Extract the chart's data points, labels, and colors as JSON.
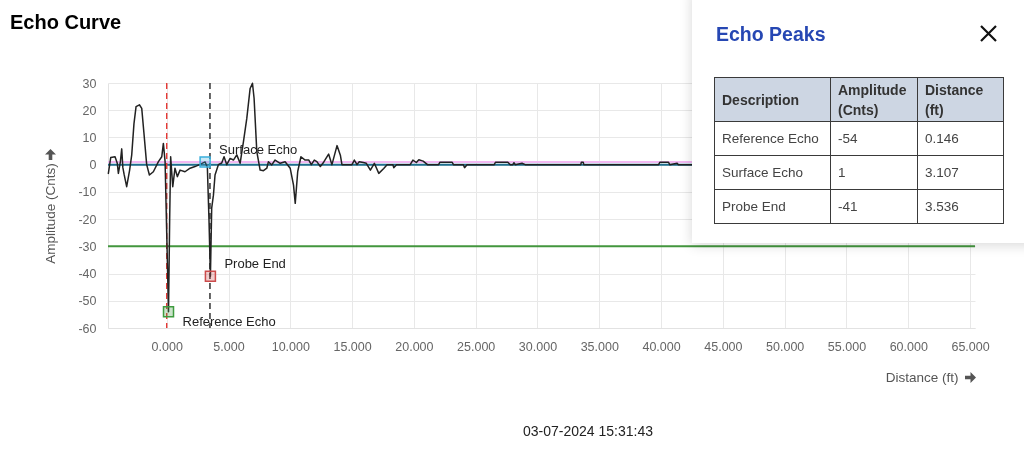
{
  "chart_data": [
    {
      "type": "line",
      "title": "Echo Curve",
      "xlabel": "Distance (ft)",
      "ylabel": "Amplitude (Cnts)",
      "x": [
        -4.72,
        -4.53,
        -4.18,
        -4.0,
        -3.91,
        -3.75,
        -3.64,
        -3.55,
        -3.45,
        -3.24,
        -3.0,
        -2.83,
        -2.65,
        -2.48,
        -2.21,
        -2.02,
        -1.85,
        -1.62,
        -1.4,
        -1.08,
        -0.67,
        -0.4,
        -0.27,
        -0.13,
        0.0,
        0.146,
        0.24,
        0.32,
        0.49,
        0.67,
        0.86,
        1.08,
        1.48,
        1.89,
        2.29,
        2.7,
        3.107,
        3.29,
        3.42,
        3.536,
        3.64,
        3.78,
        3.91,
        4.18,
        4.45,
        4.64,
        4.86,
        5.13,
        5.4,
        5.67,
        5.94,
        6.21,
        6.48,
        6.75,
        6.94,
        7.07,
        7.29,
        7.56,
        7.83,
        8.1,
        8.23,
        8.5,
        8.77,
        9.18,
        9.58,
        9.99,
        10.26,
        10.4,
        10.6,
        10.86,
        11.2,
        11.5,
        11.7,
        11.94,
        12.15,
        12.43,
        12.7,
        13.1,
        13.37,
        13.78,
        14.05,
        14.18,
        14.99,
        15.18,
        15.4,
        15.58,
        15.9,
        16.15,
        16.48,
        16.8,
        17.16,
        17.56,
        17.83,
        18.3,
        18.37,
        18.6,
        19.7,
        19.92,
        20.2,
        20.4,
        20.75,
        21.1,
        22.0,
        22.1,
        23.1,
        23.2,
        24.0,
        24.1,
        24.3,
        26.5,
        26.6,
        27.6,
        27.8,
        28.0,
        28.1,
        28.2,
        28.75,
        29.0,
        33.5,
        33.55,
        33.7,
        33.75,
        39.8,
        39.9,
        40.6,
        40.7,
        41.3,
        41.4,
        42.5
      ],
      "series": [
        {
          "color": "#222222",
          "values": [
            -3.2,
            2.6,
            2.9,
            0.5,
            -3.2,
            1,
            5.8,
            -1,
            -3.5,
            -8.1,
            -2,
            3.6,
            15,
            21.3,
            22,
            20.7,
            12,
            0,
            -3.8,
            -2.6,
            1.1,
            2.9,
            7.8,
            1.1,
            -25,
            -54,
            -20,
            2.9,
            -8.1,
            -1.3,
            -4.4,
            -2,
            -2.6,
            -1.3,
            -0.7,
            0.1,
            1,
            -1,
            -20,
            -41,
            -16,
            -11.2,
            -3.8,
            0,
            0.6,
            2.9,
            0,
            2.3,
            1.7,
            3.6,
            0.5,
            8.5,
            17,
            28,
            29.9,
            24.4,
            4.8,
            -2,
            -2.2,
            -1.3,
            1.1,
            -0.1,
            1.7,
            0.5,
            1.1,
            -1.3,
            -7.5,
            -14.2,
            -2.5,
            2.9,
            1.7,
            1.7,
            0,
            1.7,
            1.1,
            -0.7,
            0.9,
            3.9,
            0,
            7,
            3.5,
            0,
            0,
            1.7,
            0,
            1.1,
            0.8,
            0.5,
            -2,
            0.5,
            -3.2,
            -1.4,
            0,
            0,
            -1.1,
            0,
            0,
            1.7,
            0.8,
            1.8,
            1.3,
            0,
            0,
            0.9,
            0.9,
            0,
            0,
            -1.1,
            0,
            0,
            0.9,
            0.9,
            0,
            0,
            0.7,
            0,
            0.5,
            0,
            0,
            0.9,
            0.9,
            0,
            0,
            0.9,
            0.9,
            0,
            0.5,
            0,
            0
          ]
        },
        {
          "type": "scatter",
          "marker": "square",
          "x": [
            0.146,
            3.107,
            3.536
          ],
          "values": [
            -54,
            1,
            -41
          ],
          "colors": [
            "#3f9b3f",
            "#3aaedc",
            "#cc4b4b"
          ]
        }
      ],
      "xlim": [
        -4.75,
        65.4
      ],
      "ylim": [
        -60,
        30
      ],
      "xticks": [
        {
          "value": 0,
          "label": "0.000"
        },
        {
          "value": 5,
          "label": "5.000"
        },
        {
          "value": 10,
          "label": "10.000"
        },
        {
          "value": 15,
          "label": "15.000"
        },
        {
          "value": 20,
          "label": "20.000"
        },
        {
          "value": 25,
          "label": "25.000"
        },
        {
          "value": 30,
          "label": "30.000"
        },
        {
          "value": 35,
          "label": "35.000"
        },
        {
          "value": 40,
          "label": "40.000"
        },
        {
          "value": 45,
          "label": "45.000"
        },
        {
          "value": 50,
          "label": "50.000"
        },
        {
          "value": 55,
          "label": "55.000"
        },
        {
          "value": 60,
          "label": "60.000"
        },
        {
          "value": 65,
          "label": "65.000"
        }
      ],
      "yticks": [
        -60,
        -50,
        -40,
        -30,
        -20,
        -10,
        0,
        10,
        20,
        30
      ],
      "grid": true,
      "ref_lines": [
        {
          "axis": "y",
          "value": -30,
          "color": "#43963e"
        },
        {
          "axis": "y",
          "value": 0,
          "color": "#1f6f8f"
        },
        {
          "axis": "y",
          "value": 1,
          "color": "#f2b8f2"
        },
        {
          "axis": "x",
          "value": 0,
          "color": "#e53935",
          "line_style": "dashed"
        },
        {
          "axis": "x",
          "value": 3.5,
          "color": "#222222",
          "line_style": "dashed"
        }
      ],
      "annotations": [
        {
          "text": "Reference Echo",
          "x": 0.146,
          "y": -54
        },
        {
          "text": "Surface Echo",
          "x": 3.107,
          "y": 1
        },
        {
          "text": "Probe End",
          "x": 3.536,
          "y": -41
        },
        "03-07-2024 15:31:43"
      ]
    },
    {
      "type": "other",
      "title": "Echo Peaks",
      "xlabel": "Description",
      "categories": [
        "Reference Echo",
        "Surface Echo",
        "Probe End"
      ],
      "series": [
        {
          "name": "Amplitude (Cnts)",
          "values": [
            -54,
            1,
            -41
          ]
        },
        {
          "name": "Distance (ft)",
          "values": [
            0.146,
            3.107,
            3.536
          ]
        }
      ],
      "data_labels": true
    }
  ]
}
